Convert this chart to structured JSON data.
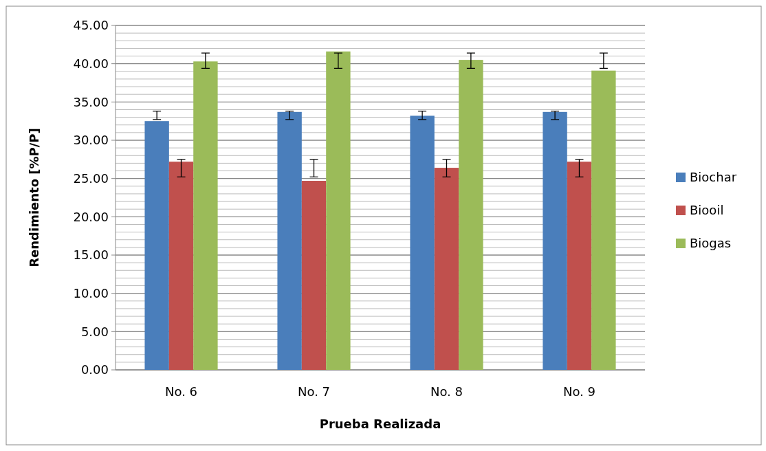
{
  "chart_data": {
    "type": "bar",
    "xlabel": "Prueba Realizada",
    "ylabel": "Rendimiento [%P/P]",
    "categories": [
      "No. 6",
      "No. 7",
      "No. 8",
      "No. 9"
    ],
    "series": [
      {
        "name": "Biochar",
        "color": "#4a7ebb",
        "values": [
          32.5,
          33.7,
          33.2,
          33.7
        ],
        "errors": [
          [
            32.7,
            33.8
          ],
          [
            32.7,
            33.8
          ],
          [
            32.7,
            33.8
          ],
          [
            32.7,
            33.8
          ]
        ]
      },
      {
        "name": "Biooil",
        "color": "#c0504d",
        "values": [
          27.2,
          24.7,
          26.4,
          27.2
        ],
        "errors": [
          [
            25.2,
            27.5
          ],
          [
            25.2,
            27.5
          ],
          [
            25.2,
            27.5
          ],
          [
            25.2,
            27.5
          ]
        ]
      },
      {
        "name": "Biogas",
        "color": "#9bbb59",
        "values": [
          40.3,
          41.6,
          40.5,
          39.1
        ],
        "errors": [
          [
            39.4,
            41.4
          ],
          [
            39.4,
            41.4
          ],
          [
            39.4,
            41.4
          ],
          [
            39.4,
            41.4
          ]
        ]
      }
    ],
    "ylim": [
      0,
      45
    ],
    "yticks": [
      {
        "value": 0,
        "label": "0.00"
      },
      {
        "value": 5,
        "label": "5.00"
      },
      {
        "value": 10,
        "label": "10.00"
      },
      {
        "value": 15,
        "label": "15.00"
      },
      {
        "value": 20,
        "label": "20.00"
      },
      {
        "value": 25,
        "label": "25.00"
      },
      {
        "value": 30,
        "label": "30.00"
      },
      {
        "value": 35,
        "label": "35.00"
      },
      {
        "value": 40,
        "label": "40.00"
      },
      {
        "value": 45,
        "label": "45.00"
      }
    ],
    "grid": "y",
    "legend": "right"
  }
}
